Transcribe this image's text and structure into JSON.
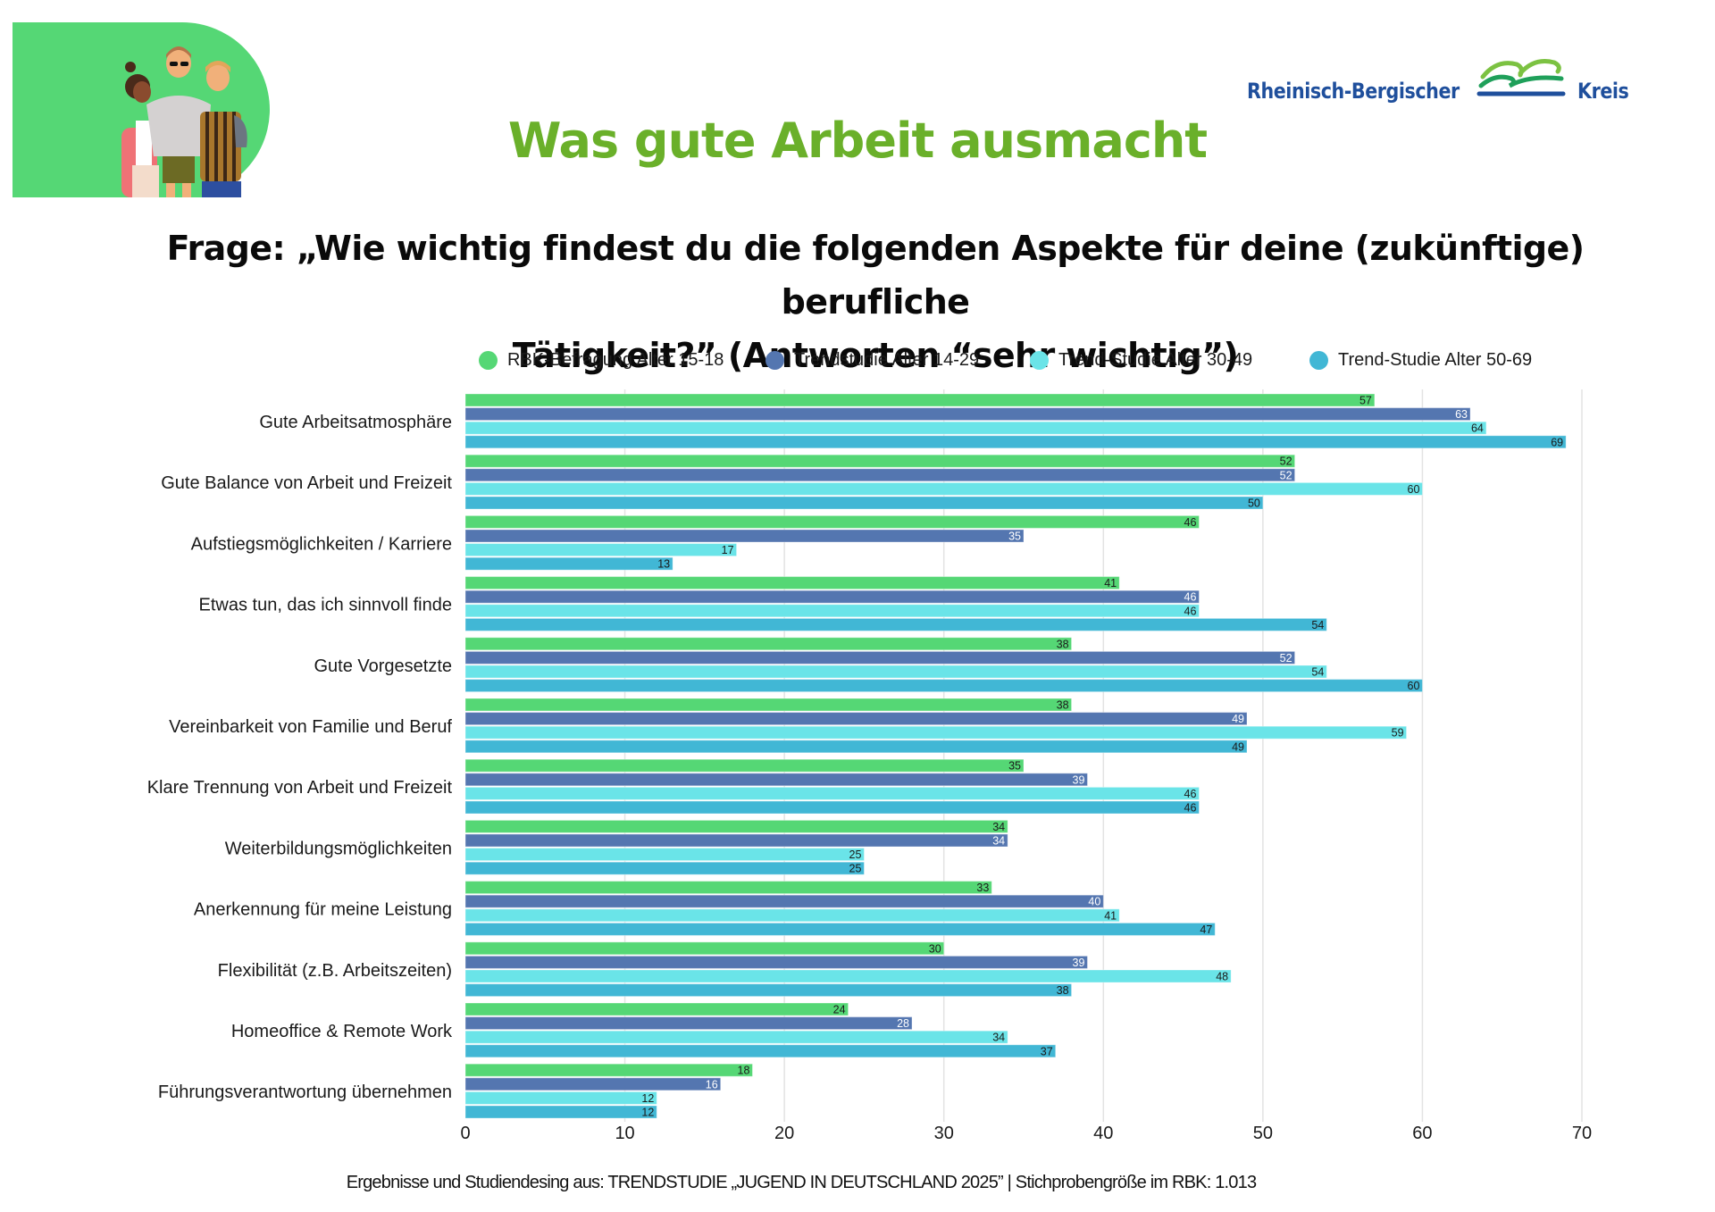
{
  "header": {
    "title": "Was gute Arbeit ausmacht",
    "question_line1": "Frage: „Wie wichtig findest du die folgenden Aspekte für deine (zukünftige) berufliche",
    "question_line2": "Tätigkeit?” (Antworten “sehr wichtig”)",
    "illustration_icon": "group-of-friends-illustration",
    "title_color": "#6ab02a"
  },
  "logo": {
    "text_left": "Rheinisch-Bergischer",
    "text_right": "Kreis",
    "emblem_icon": "hills-river-emblem",
    "colors": {
      "text": "#1f4f9c",
      "light_green": "#7cc242",
      "green": "#1fa05a",
      "blue": "#1f4f9c"
    }
  },
  "footer": {
    "note": "Ergebnisse und Studiendesing aus: TRENDSTUDIE „JUGEND IN DEUTSCHLAND 2025”  | Stichprobengröße im RBK:  1.013"
  },
  "chart_data": {
    "type": "bar",
    "orientation": "horizontal",
    "title": "Was gute Arbeit ausmacht",
    "subtitle": "Frage: „Wie wichtig findest du die folgenden Aspekte für deine (zukünftige) berufliche Tätigkeit?” (Antworten “sehr wichtig”)",
    "xlabel": "",
    "ylabel": "",
    "xlim": [
      0,
      70
    ],
    "xticks": [
      0,
      10,
      20,
      30,
      40,
      50,
      60,
      70
    ],
    "grid": true,
    "legend_position": "top",
    "data_labels": true,
    "categories": [
      "Gute Arbeitsatmosphäre",
      "Gute Balance von Arbeit und Freizeit",
      "Aufstiegsmöglichkeiten / Karriere",
      "Etwas tun, das ich sinnvoll finde",
      "Gute Vorgesetzte",
      "Vereinbarkeit von Familie und Beruf",
      "Klare Trennung von Arbeit und Freizeit",
      "Weiterbildungsmöglichkeiten",
      "Anerkennung für meine Leistung",
      "Flexibilität (z.B. Arbeitszeiten)",
      "Homeoffice & Remote Work",
      "Führungsverantwortung übernehmen"
    ],
    "series": [
      {
        "name": "RBK-Befragung Alter 15-18",
        "color": "#55d775",
        "label_color": "#1a1a1a",
        "values": [
          57,
          52,
          46,
          41,
          38,
          38,
          35,
          34,
          33,
          30,
          24,
          18
        ]
      },
      {
        "name": "Trendstudie Alter 14-29",
        "color": "#5476b0",
        "label_color": "#ffffff",
        "values": [
          63,
          52,
          35,
          46,
          52,
          49,
          39,
          34,
          40,
          39,
          28,
          16
        ]
      },
      {
        "name": "Trend-Studie Alter 30-49",
        "color": "#6ae4e8",
        "label_color": "#1a1a1a",
        "values": [
          64,
          60,
          17,
          46,
          54,
          59,
          46,
          25,
          41,
          48,
          34,
          12
        ]
      },
      {
        "name": "Trend-Studie Alter 50-69",
        "color": "#41b7d5",
        "label_color": "#1a1a1a",
        "values": [
          69,
          50,
          13,
          54,
          60,
          49,
          46,
          25,
          47,
          38,
          37,
          12
        ]
      }
    ]
  }
}
